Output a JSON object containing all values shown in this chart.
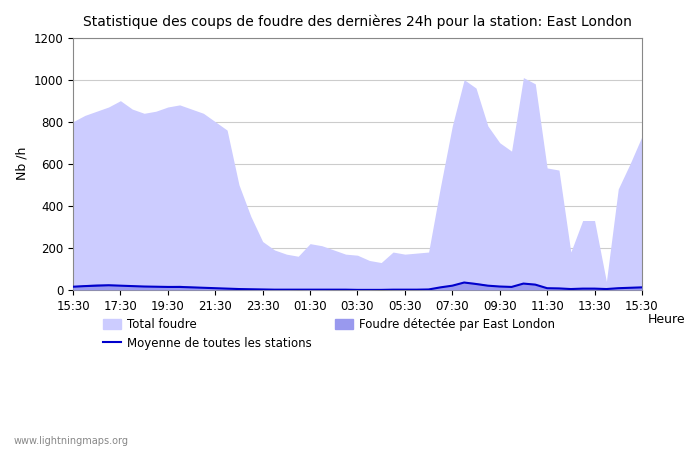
{
  "title": "Statistique des coups de foudre des dernières 24h pour la station: East London",
  "xlabel": "Heure",
  "ylabel": "Nb /h",
  "watermark": "www.lightningmaps.org",
  "ylim": [
    0,
    1200
  ],
  "yticks": [
    0,
    200,
    400,
    600,
    800,
    1000,
    1200
  ],
  "xtick_labels": [
    "15:30",
    "17:30",
    "19:30",
    "21:30",
    "23:30",
    "01:30",
    "03:30",
    "05:30",
    "07:30",
    "09:30",
    "11:30",
    "13:30",
    "15:30"
  ],
  "legend": {
    "total_foudre_label": "Total foudre",
    "moyenne_label": "Moyenne de toutes les stations",
    "detected_label": "Foudre détectée par East London"
  },
  "colors": {
    "total_fill": "#ccccff",
    "total_edge": "#ccccff",
    "detected_fill": "#9999ee",
    "detected_edge": "#9999ee",
    "moyenne_line": "#0000cc",
    "background": "#ffffff",
    "grid": "#cccccc",
    "title": "#000000",
    "text": "#000000"
  },
  "x_values": [
    0,
    1,
    2,
    3,
    4,
    5,
    6,
    7,
    8,
    9,
    10,
    11,
    12,
    13,
    14,
    15,
    16,
    17,
    18,
    19,
    20,
    21,
    22,
    23,
    24,
    25,
    26,
    27,
    28,
    29,
    30,
    31,
    32,
    33,
    34,
    35,
    36,
    37,
    38,
    39,
    40,
    41,
    42,
    43,
    44,
    45,
    46,
    47,
    48
  ],
  "total_foudre": [
    800,
    830,
    850,
    870,
    900,
    860,
    840,
    850,
    870,
    880,
    860,
    840,
    800,
    760,
    500,
    350,
    230,
    190,
    170,
    160,
    220,
    210,
    190,
    170,
    165,
    140,
    130,
    180,
    170,
    175,
    180,
    490,
    780,
    1000,
    960,
    780,
    700,
    660,
    1010,
    980,
    580,
    570,
    180,
    330,
    330,
    40,
    480,
    600,
    730
  ],
  "detected_foudre": [
    20,
    25,
    30,
    28,
    25,
    22,
    20,
    18,
    20,
    22,
    18,
    15,
    12,
    10,
    8,
    5,
    3,
    2,
    2,
    1,
    2,
    2,
    1,
    1,
    1,
    1,
    0,
    1,
    1,
    1,
    2,
    15,
    25,
    40,
    35,
    25,
    20,
    18,
    35,
    30,
    10,
    8,
    5,
    8,
    7,
    5,
    10,
    12,
    15
  ],
  "moyenne": [
    15,
    18,
    20,
    22,
    20,
    18,
    16,
    15,
    14,
    14,
    12,
    10,
    8,
    6,
    4,
    3,
    2,
    1,
    1,
    1,
    1,
    1,
    1,
    1,
    0,
    0,
    0,
    1,
    1,
    1,
    2,
    12,
    20,
    35,
    28,
    20,
    16,
    14,
    30,
    25,
    8,
    7,
    4,
    6,
    6,
    4,
    8,
    10,
    12
  ]
}
